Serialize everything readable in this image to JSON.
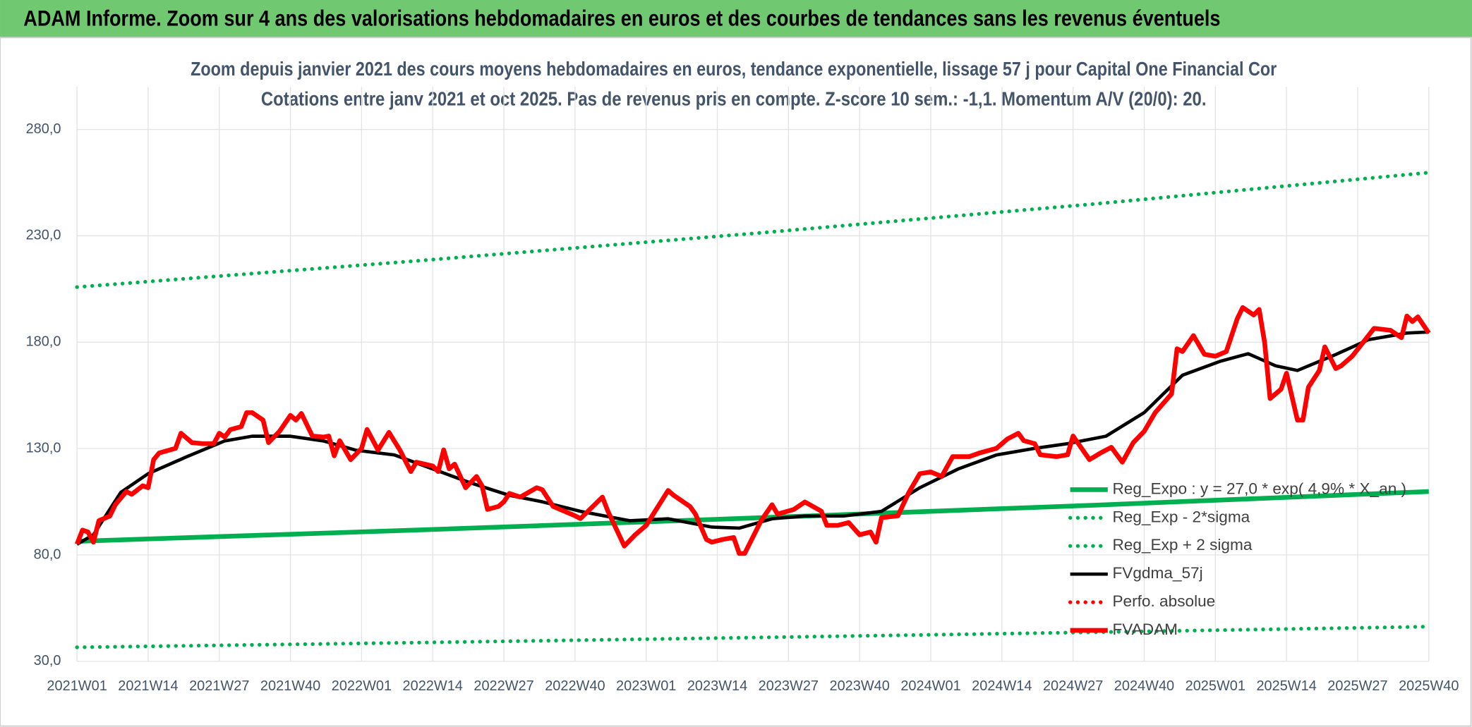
{
  "chart_data": {
    "type": "line",
    "header": "ADAM Informe. Zoom sur 4 ans des valorisations hebdomadaires en euros et des courbes de tendances sans les revenus éventuels",
    "title": "Zoom depuis janvier 2021 des cours moyens hebdomadaires en euros, tendance exponentielle, lissage 57 j pour Capital One Financial Cor",
    "subtitle": "Cotations entre janv 2021 et oct 2025. Pas de revenus pris en compte. Z-score 10 sem.: -1,1. Momentum A/V (20/0): 20.",
    "xlim": [
      0,
      247
    ],
    "xticks": [
      {
        "value": 0,
        "label": "2021W01"
      },
      {
        "value": 13,
        "label": "2021W14"
      },
      {
        "value": 26,
        "label": "2021W27"
      },
      {
        "value": 39,
        "label": "2021W40"
      },
      {
        "value": 52,
        "label": "2022W01"
      },
      {
        "value": 65,
        "label": "2022W14"
      },
      {
        "value": 78,
        "label": "2022W27"
      },
      {
        "value": 91,
        "label": "2022W40"
      },
      {
        "value": 104,
        "label": "2023W01"
      },
      {
        "value": 117,
        "label": "2023W14"
      },
      {
        "value": 130,
        "label": "2023W27"
      },
      {
        "value": 143,
        "label": "2023W40"
      },
      {
        "value": 156,
        "label": "2024W01"
      },
      {
        "value": 169,
        "label": "2024W14"
      },
      {
        "value": 182,
        "label": "2024W27"
      },
      {
        "value": 195,
        "label": "2024W40"
      },
      {
        "value": 208,
        "label": "2025W01"
      },
      {
        "value": 221,
        "label": "2025W14"
      },
      {
        "value": 234,
        "label": "2025W27"
      },
      {
        "value": 247,
        "label": "2025W40"
      }
    ],
    "ylim": [
      30,
      300
    ],
    "yticks": [
      {
        "value": 30,
        "label": "30,0"
      },
      {
        "value": 80,
        "label": "80,0"
      },
      {
        "value": 130,
        "label": "130,0"
      },
      {
        "value": 180,
        "label": "180,0"
      },
      {
        "value": 230,
        "label": "230,0"
      },
      {
        "value": 280,
        "label": "280,0"
      }
    ],
    "grid": true,
    "legend": "right",
    "series": [
      {
        "name": "Reg_Expo : y = 27,0 * exp( 4,9% * X_an )",
        "color": "#00b050",
        "style": "solid",
        "x": [
          0,
          62,
          124,
          186,
          247
        ],
        "values": [
          86.4,
          91.7,
          97.4,
          103.4,
          109.8
        ]
      },
      {
        "name": "Reg_Exp - 2*sigma",
        "color": "#00b050",
        "style": "dotted",
        "x": [
          0,
          62,
          124,
          186,
          247
        ],
        "values": [
          36.6,
          38.8,
          41.2,
          43.7,
          46.3
        ]
      },
      {
        "name": "Reg_Exp + 2 sigma",
        "color": "#00b050",
        "style": "dotted",
        "x": [
          0,
          62,
          124,
          186,
          247
        ],
        "values": [
          205.9,
          218.2,
          231.2,
          245.0,
          259.7
        ]
      },
      {
        "name": "FVgdma_57j",
        "color": "#000000",
        "style": "solid",
        "x": [
          0,
          3,
          8,
          13,
          20,
          27,
          32,
          39,
          45,
          51,
          58,
          65,
          72,
          79,
          85,
          92,
          101,
          108,
          116,
          121,
          127,
          133,
          140,
          147,
          154,
          161,
          168,
          175,
          181,
          188,
          195,
          202,
          209,
          214,
          219,
          223,
          230,
          236,
          243,
          247
        ],
        "values": [
          85,
          89.5,
          109.4,
          118.2,
          126.1,
          133.6,
          135.8,
          135.8,
          133.6,
          129.2,
          127.0,
          120.4,
          113.8,
          108.0,
          105.0,
          100.5,
          96.1,
          97.0,
          93.1,
          92.6,
          97.0,
          98.3,
          98.3,
          100.5,
          111.6,
          120.4,
          127.0,
          130.1,
          132.3,
          135.8,
          146.9,
          164.5,
          171.1,
          174.6,
          168.9,
          166.7,
          174.2,
          181.2,
          184.3,
          184.8
        ]
      },
      {
        "name": "Perfo. absolue",
        "color": "#ff0000",
        "style": "dotted",
        "x": [],
        "values": []
      },
      {
        "name": "FVADAM",
        "color": "#ff0000",
        "style": "solid",
        "x": [
          0,
          1,
          2,
          3,
          4,
          6,
          7,
          9,
          10,
          12,
          13,
          14,
          15,
          18,
          19,
          21,
          23,
          25,
          26,
          27,
          28,
          30,
          31,
          32,
          34,
          35,
          37,
          39,
          40,
          41,
          43,
          45,
          46,
          47,
          48,
          50,
          52,
          53,
          55,
          57,
          59,
          61,
          62,
          65,
          66,
          67,
          68,
          69,
          71,
          73,
          74,
          75,
          77,
          78,
          79,
          81,
          84,
          85,
          87,
          89,
          91,
          92,
          96,
          97,
          100,
          102,
          104,
          108,
          109,
          112,
          113,
          115,
          116,
          118,
          120,
          121,
          122,
          125,
          127,
          128,
          131,
          133,
          136,
          137,
          139,
          141,
          143,
          145,
          146,
          147,
          150,
          152,
          154,
          156,
          158,
          160,
          163,
          165,
          168,
          170,
          172,
          173,
          175,
          176,
          179,
          181,
          182,
          185,
          187,
          189,
          191,
          193,
          195,
          197,
          200,
          201,
          202,
          204,
          206,
          208,
          210,
          212,
          213,
          215,
          216,
          217,
          218,
          220,
          221,
          223,
          224,
          225,
          227,
          228,
          230,
          231,
          233,
          235,
          237,
          240,
          242,
          243,
          244,
          245,
          247
        ],
        "values": [
          85.1,
          91.7,
          90.8,
          86.0,
          96.1,
          98.3,
          103.6,
          109.8,
          108.5,
          112.5,
          111.6,
          124.8,
          127.9,
          130.1,
          137.2,
          132.8,
          132.3,
          132.3,
          137.2,
          135.4,
          138.9,
          140.3,
          146.9,
          146.9,
          143.4,
          132.8,
          138.1,
          145.6,
          143.4,
          146.5,
          135.9,
          135.4,
          135.9,
          126.6,
          133.7,
          124.8,
          130.1,
          139.0,
          129.3,
          137.6,
          129.3,
          119.2,
          123.6,
          121.8,
          119.2,
          129.4,
          120.5,
          122.7,
          111.6,
          116.9,
          112.5,
          101.4,
          102.8,
          105.0,
          108.9,
          107.2,
          111.6,
          110.7,
          102.8,
          100.6,
          98.4,
          97.1,
          107.2,
          100.6,
          84.2,
          89.5,
          93.9,
          110.3,
          108.1,
          102.8,
          99.2,
          87.3,
          86.0,
          87.3,
          88.2,
          80.7,
          80.7,
          96.1,
          103.6,
          99.2,
          101.4,
          104.9,
          100.6,
          93.9,
          93.9,
          95.2,
          89.5,
          90.8,
          86.0,
          97.5,
          98.4,
          109.4,
          118.2,
          119.0,
          116.9,
          126.2,
          126.2,
          128.0,
          130.1,
          134.5,
          137.2,
          133.7,
          132.3,
          127.1,
          126.2,
          127.1,
          135.9,
          124.8,
          127.9,
          130.6,
          123.6,
          132.8,
          138.1,
          146.9,
          155.7,
          176.9,
          175.6,
          183.1,
          174.3,
          173.4,
          175.6,
          191.0,
          196.3,
          192.8,
          195.4,
          179.9,
          153.5,
          157.9,
          165.4,
          143.4,
          143.4,
          158.8,
          166.7,
          177.8,
          167.6,
          168.9,
          173.4,
          179.9,
          186.5,
          185.6,
          182.1,
          192.3,
          189.7,
          191.9,
          184.3
        ]
      }
    ]
  }
}
